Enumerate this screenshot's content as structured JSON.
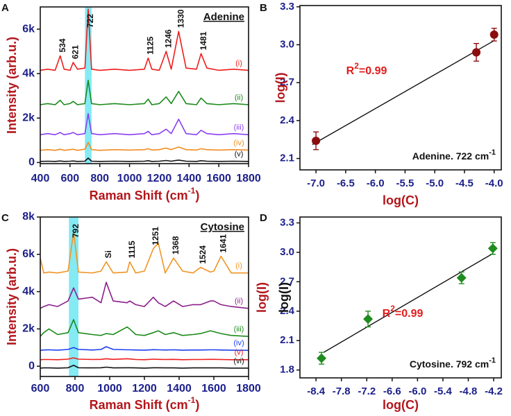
{
  "chart_data": [
    {
      "type": "spectra",
      "panel": "A",
      "title": "Adenine",
      "x_label": {
        "text": "Raman Shift (cm",
        "sup": "-1",
        "end": ")"
      },
      "y_label": "Intensity (arb.u.)",
      "xlim": [
        400,
        1800
      ],
      "xticks": [
        400,
        600,
        800,
        1000,
        1200,
        1400,
        1600,
        1800
      ],
      "ylim": [
        -50,
        7000
      ],
      "yticks": [
        0,
        {
          "value": 2000,
          "label": "2k"
        },
        {
          "value": 4000,
          "label": "4k"
        },
        {
          "value": 6000,
          "label": "6k"
        }
      ],
      "highlight": [
        700,
        745
      ],
      "highlight_color": "#6fe6f2",
      "peaks": [
        534,
        621,
        722,
        1125,
        1246,
        1330,
        1481
      ],
      "x": [
        400,
        450,
        500,
        534,
        560,
        600,
        621,
        650,
        700,
        722,
        745,
        800,
        900,
        1000,
        1100,
        1125,
        1150,
        1200,
        1246,
        1280,
        1330,
        1380,
        1450,
        1481,
        1520,
        1600,
        1700,
        1800
      ],
      "series": [
        {
          "name": "(i)",
          "color": "#ee1c1c",
          "values": [
            4150,
            4200,
            4150,
            4800,
            4200,
            4150,
            4500,
            4200,
            4250,
            6900,
            4200,
            4150,
            4200,
            4150,
            4200,
            4700,
            4200,
            4150,
            5000,
            4200,
            5900,
            4250,
            4200,
            4900,
            4250,
            4150,
            4200,
            4150
          ]
        },
        {
          "name": "(ii)",
          "color": "#1a8a1a",
          "values": [
            2600,
            2650,
            2600,
            2800,
            2600,
            2650,
            2750,
            2600,
            2650,
            3700,
            2650,
            2600,
            2650,
            2600,
            2650,
            2850,
            2600,
            2650,
            2950,
            2650,
            3200,
            2650,
            2600,
            2900,
            2650,
            2600,
            2650,
            2600
          ]
        },
        {
          "name": "(iii)",
          "color": "#8a3ff0",
          "values": [
            1250,
            1300,
            1250,
            1350,
            1250,
            1300,
            1350,
            1250,
            1300,
            2200,
            1300,
            1250,
            1300,
            1250,
            1300,
            1400,
            1250,
            1300,
            1500,
            1300,
            1950,
            1300,
            1250,
            1450,
            1300,
            1250,
            1300,
            1250
          ]
        },
        {
          "name": "(iv)",
          "color": "#f28c1e",
          "values": [
            550,
            580,
            550,
            600,
            550,
            580,
            600,
            550,
            600,
            900,
            580,
            550,
            580,
            560,
            580,
            620,
            560,
            580,
            650,
            580,
            700,
            580,
            560,
            620,
            580,
            560,
            580,
            560
          ]
        },
        {
          "name": "(v)",
          "color": "#111111",
          "values": [
            50,
            60,
            50,
            70,
            50,
            60,
            70,
            50,
            60,
            200,
            60,
            50,
            60,
            50,
            60,
            80,
            50,
            60,
            90,
            60,
            110,
            60,
            50,
            80,
            60,
            50,
            60,
            50
          ]
        }
      ]
    },
    {
      "type": "scatter",
      "panel": "B",
      "x_label": "log(C)",
      "y_labels": [
        "log(I)"
      ],
      "xlim": [
        -7.27,
        -3.88
      ],
      "xticks": [
        {
          "value": -7,
          "label": "-7.0"
        },
        -6.5,
        {
          "value": -6,
          "label": "-6.0"
        },
        -5.5,
        {
          "value": -5,
          "label": "-5.0"
        },
        -4.5,
        {
          "value": -4,
          "label": "-4.0"
        }
      ],
      "ylim": [
        2.01,
        3.31
      ],
      "yticks": [
        2.1,
        2.4,
        2.7,
        {
          "value": 3,
          "label": "3.0"
        },
        3.3
      ],
      "marker": "circle",
      "color": "#8b0d0d",
      "x": [
        -7.0,
        -4.3,
        -4.0
      ],
      "values": [
        2.24,
        2.94,
        3.08
      ],
      "errors": [
        0.07,
        0.07,
        0.05
      ],
      "fit": {
        "x": [
          -7.06,
          -4.01
        ],
        "values": [
          2.21,
          3.03
        ]
      },
      "r2": {
        "base": "R",
        "sup": "2",
        "rest": "=0.99"
      },
      "note": {
        "text": "Adenine. 722 cm",
        "sup": "-1"
      }
    },
    {
      "type": "spectra",
      "panel": "C",
      "title": "Cytosine",
      "x_label": {
        "text": "Raman Shift (cm",
        "sup": "-1",
        "end": ")"
      },
      "y_label": "Intensity (arb.u.)",
      "xlim": [
        600,
        1800
      ],
      "xticks": [
        600,
        800,
        1000,
        1200,
        1400,
        1600,
        1800
      ],
      "ylim": [
        -550,
        8000
      ],
      "yticks": [
        0,
        {
          "value": 2000,
          "label": "2k"
        },
        {
          "value": 4000,
          "label": "4k"
        },
        {
          "value": 6000,
          "label": "6k"
        },
        {
          "value": 8000,
          "label": "8k"
        }
      ],
      "highlight": [
        765,
        820
      ],
      "highlight_color": "#6fe6f2",
      "peaks": [
        792,
        {
          "value": 980,
          "label": "Si"
        },
        1115,
        1251,
        1368,
        1524,
        1641
      ],
      "x": [
        600,
        620,
        650,
        700,
        760,
        792,
        820,
        900,
        950,
        980,
        1020,
        1100,
        1115,
        1150,
        1200,
        1251,
        1280,
        1320,
        1368,
        1420,
        1480,
        1524,
        1580,
        1600,
        1641,
        1700,
        1800
      ],
      "series": [
        {
          "name": "(i)",
          "color": "#f29422",
          "values": [
            5800,
            5000,
            5050,
            5000,
            5100,
            7200,
            5050,
            5000,
            5100,
            5600,
            5000,
            5050,
            5600,
            5000,
            5100,
            6300,
            6600,
            5000,
            5800,
            5100,
            5000,
            5300,
            5050,
            5100,
            5900,
            5000,
            5000
          ]
        },
        {
          "name": "(ii)",
          "color": "#8a1e8a",
          "values": [
            3100,
            3200,
            3300,
            3200,
            3500,
            4200,
            3600,
            3700,
            3400,
            4500,
            3500,
            3400,
            3500,
            3300,
            3200,
            3700,
            3400,
            3200,
            3500,
            3200,
            3300,
            3300,
            3500,
            3500,
            3300,
            3200,
            3100
          ]
        },
        {
          "name": "(iii)",
          "color": "#1a8a1a",
          "values": [
            1600,
            1800,
            2000,
            1700,
            1800,
            2500,
            1800,
            1700,
            1650,
            1750,
            1700,
            2100,
            2000,
            1700,
            1650,
            1800,
            1900,
            1700,
            1800,
            1650,
            1700,
            1750,
            1900,
            1850,
            1750,
            1650,
            1600
          ]
        },
        {
          "name": "(iv)",
          "color": "#1c3ff0",
          "values": [
            850,
            870,
            880,
            860,
            900,
            1000,
            900,
            870,
            900,
            1050,
            900,
            880,
            880,
            870,
            860,
            890,
            880,
            870,
            880,
            860,
            870,
            870,
            880,
            880,
            870,
            860,
            850
          ]
        },
        {
          "name": "(v)",
          "color": "#ee1c1c",
          "values": [
            350,
            360,
            360,
            350,
            380,
            450,
            380,
            360,
            370,
            400,
            370,
            400,
            390,
            360,
            350,
            380,
            370,
            360,
            370,
            350,
            360,
            360,
            370,
            370,
            360,
            350,
            350
          ]
        },
        {
          "name": "(vi)",
          "color": "#111111",
          "values": [
            -100,
            -90,
            -90,
            -100,
            -80,
            50,
            -80,
            -90,
            -80,
            -50,
            -90,
            -80,
            -80,
            -90,
            -100,
            -80,
            -80,
            -90,
            -90,
            -100,
            -90,
            -90,
            -90,
            -90,
            -90,
            -100,
            -100
          ]
        }
      ]
    },
    {
      "type": "scatter",
      "panel": "D",
      "x_label": "log(C)",
      "y_labels": [
        "log(I)",
        "log(I)"
      ],
      "xlim": [
        -8.78,
        -4.02
      ],
      "xticks": [
        -8.4,
        -7.8,
        -7.2,
        -6.6,
        {
          "value": -6,
          "label": "-6.0"
        },
        -5.4,
        -4.8,
        -4.2
      ],
      "ylim": [
        1.72,
        3.36
      ],
      "yticks": [
        1.8,
        2.1,
        2.4,
        2.7,
        {
          "value": 3,
          "label": "3.0"
        },
        3.3
      ],
      "marker": "diamond",
      "color": "#1e8c1e",
      "x": [
        -8.27,
        -7.17,
        -4.96,
        -4.22
      ],
      "values": [
        1.92,
        2.32,
        2.74,
        3.04
      ],
      "errors": [
        0.06,
        0.08,
        0.06,
        0.06
      ],
      "fit": {
        "x": [
          -8.22,
          -4.21
        ],
        "values": [
          1.98,
          2.99
        ]
      },
      "r2": {
        "base": "R",
        "sup": "2",
        "rest": "=0.99"
      },
      "note": {
        "text": "Cytosine. 792 cm",
        "sup": "-1"
      }
    }
  ]
}
